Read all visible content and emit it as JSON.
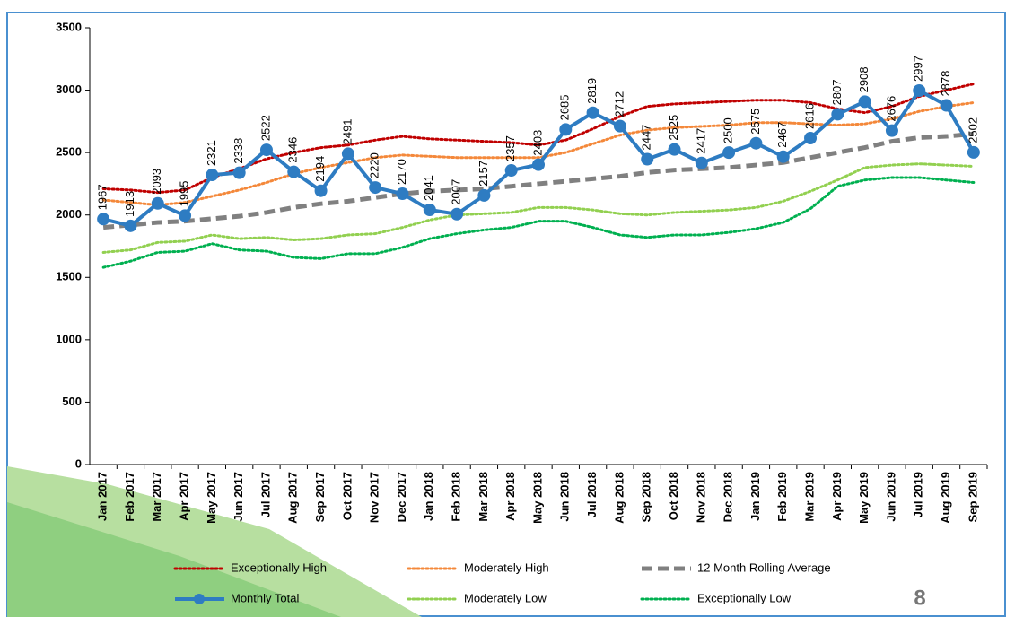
{
  "chart_data": {
    "type": "line",
    "categories": [
      "Jan 2017",
      "Feb 2017",
      "Mar 2017",
      "Apr 2017",
      "May 2017",
      "Jun 2017",
      "Jul 2017",
      "Aug 2017",
      "Sep 2017",
      "Oct 2017",
      "Nov 2017",
      "Dec 2017",
      "Jan 2018",
      "Feb 2018",
      "Mar 2018",
      "Apr 2018",
      "May 2018",
      "Jun 2018",
      "Jul 2018",
      "Aug 2018",
      "Sep 2018",
      "Oct 2018",
      "Nov 2018",
      "Dec 2018",
      "Jan 2019",
      "Feb 2019",
      "Mar 2019",
      "Apr 2019",
      "May 2019",
      "Jun 2019",
      "Jul 2019",
      "Aug 2019",
      "Sep 2019"
    ],
    "ylim": [
      0,
      3500
    ],
    "yticks": [
      0,
      500,
      1000,
      1500,
      2000,
      2500,
      3000,
      3500
    ],
    "grid": false,
    "series": [
      {
        "name": "Exceptionally High",
        "color": "#c00000",
        "style": "dotted",
        "values": [
          2210,
          2200,
          2180,
          2200,
          2300,
          2370,
          2450,
          2500,
          2540,
          2560,
          2600,
          2630,
          2610,
          2600,
          2590,
          2580,
          2560,
          2600,
          2690,
          2790,
          2870,
          2890,
          2900,
          2910,
          2920,
          2920,
          2900,
          2850,
          2820,
          2870,
          2950,
          3000,
          3050
        ]
      },
      {
        "name": "Moderately High",
        "color": "#f4883a",
        "style": "dotted",
        "values": [
          2120,
          2100,
          2080,
          2100,
          2150,
          2200,
          2260,
          2330,
          2380,
          2420,
          2460,
          2480,
          2470,
          2460,
          2460,
          2460,
          2460,
          2500,
          2570,
          2640,
          2680,
          2700,
          2710,
          2720,
          2740,
          2740,
          2730,
          2720,
          2730,
          2770,
          2830,
          2870,
          2900
        ]
      },
      {
        "name": "12 Month Rolling Average",
        "color": "#808080",
        "style": "dashed",
        "values": [
          1900,
          1920,
          1940,
          1950,
          1970,
          1990,
          2020,
          2060,
          2090,
          2110,
          2140,
          2170,
          2190,
          2200,
          2210,
          2230,
          2250,
          2270,
          2290,
          2310,
          2340,
          2360,
          2370,
          2380,
          2400,
          2420,
          2460,
          2500,
          2540,
          2590,
          2620,
          2630,
          2650
        ]
      },
      {
        "name": "Monthly Total",
        "color": "#2e7cc2",
        "style": "solid",
        "markers": true,
        "data_labels": true,
        "values": [
          1967,
          1913,
          2093,
          1995,
          2321,
          2338,
          2522,
          2346,
          2194,
          2491,
          2220,
          2170,
          2041,
          2007,
          2157,
          2357,
          2403,
          2685,
          2819,
          2712,
          2447,
          2525,
          2417,
          2500,
          2575,
          2467,
          2616,
          2807,
          2908,
          2676,
          2997,
          2878,
          2502
        ]
      },
      {
        "name": "Moderately Low",
        "color": "#92d050",
        "style": "dotted",
        "values": [
          1700,
          1720,
          1780,
          1790,
          1840,
          1810,
          1820,
          1800,
          1810,
          1840,
          1850,
          1900,
          1960,
          2000,
          2010,
          2020,
          2060,
          2060,
          2040,
          2010,
          2000,
          2020,
          2030,
          2040,
          2060,
          2110,
          2190,
          2280,
          2380,
          2400,
          2410,
          2400,
          2390
        ]
      },
      {
        "name": "Exceptionally Low",
        "color": "#00b050",
        "style": "dotted",
        "values": [
          1580,
          1630,
          1700,
          1710,
          1770,
          1720,
          1710,
          1660,
          1650,
          1690,
          1690,
          1740,
          1810,
          1850,
          1880,
          1900,
          1950,
          1950,
          1900,
          1840,
          1820,
          1840,
          1840,
          1860,
          1890,
          1940,
          2050,
          2230,
          2280,
          2300,
          2300,
          2280,
          2260
        ]
      }
    ]
  },
  "page_number": "8"
}
